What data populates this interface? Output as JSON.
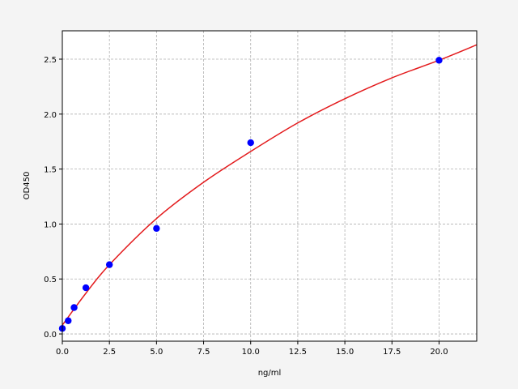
{
  "chart_data": {
    "type": "scatter",
    "title": "",
    "xlabel": "ng/ml",
    "ylabel": "OD450",
    "xlim": [
      0,
      22
    ],
    "ylim": [
      -0.066,
      2.758
    ],
    "grid": true,
    "xticks": [
      "0.0",
      "2.5",
      "5.0",
      "7.5",
      "10.0",
      "12.5",
      "15.0",
      "17.5",
      "20.0"
    ],
    "yticks": [
      "0.0",
      "0.5",
      "1.0",
      "1.5",
      "2.0",
      "2.5"
    ],
    "points": {
      "color": "#0000ff",
      "x": [
        0,
        0.3125,
        0.625,
        1.25,
        2.5,
        5,
        10,
        20
      ],
      "y": [
        0.05,
        0.12,
        0.24,
        0.42,
        0.63,
        0.96,
        1.74,
        2.49
      ]
    },
    "fit_curve": {
      "color": "#e31a1c",
      "x": [
        0,
        1.25,
        2.5,
        5,
        7.5,
        10,
        12.5,
        15,
        17.5,
        20,
        22
      ],
      "y": [
        0.08,
        0.37,
        0.63,
        1.05,
        1.38,
        1.66,
        1.92,
        2.14,
        2.33,
        2.49,
        2.63
      ]
    }
  }
}
